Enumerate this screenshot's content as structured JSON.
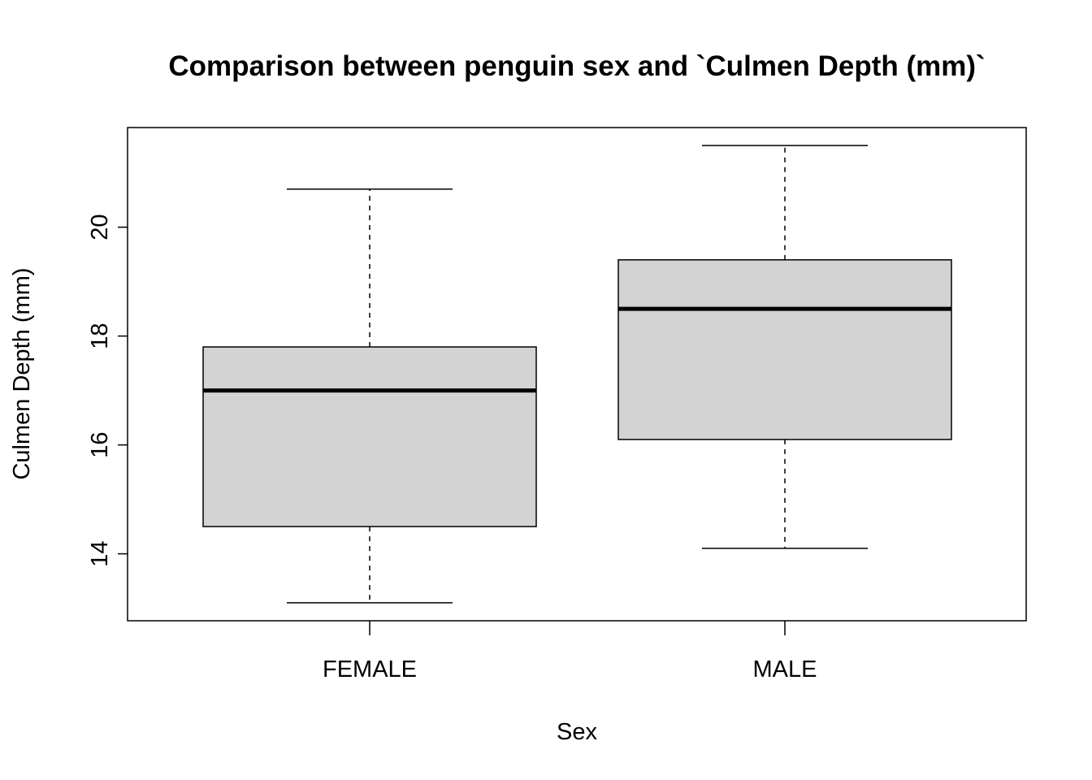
{
  "chart_data": {
    "type": "box",
    "title": "Comparison between penguin sex and `Culmen Depth (mm)`",
    "xlabel": "Sex",
    "ylabel": "Culmen Depth (mm)",
    "categories": [
      "FEMALE",
      "MALE"
    ],
    "boxes": [
      {
        "category": "FEMALE",
        "min": 13.1,
        "q1": 14.5,
        "median": 17.0,
        "q3": 17.8,
        "max": 20.7
      },
      {
        "category": "MALE",
        "min": 14.1,
        "q1": 16.1,
        "median": 18.5,
        "q3": 19.4,
        "max": 21.5
      }
    ],
    "y_ticks": [
      14,
      16,
      18,
      20
    ],
    "ylim": [
      12.77,
      21.83
    ],
    "grid": false,
    "box_fill": "#d3d3d3",
    "line_color": "#000000"
  }
}
